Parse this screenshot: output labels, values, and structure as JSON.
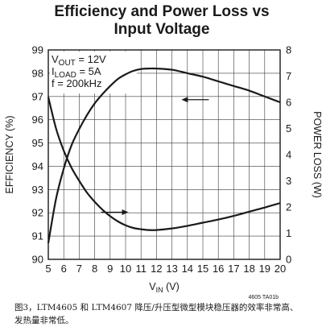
{
  "chart_data": {
    "type": "line",
    "title": "Efficiency and Power Loss vs Input Voltage",
    "title_lines": [
      "Efficiency and Power Loss vs",
      "Input Voltage"
    ],
    "xlabel": "V",
    "xlabel_sub": "IN",
    "xlabel_unit": " (V)",
    "ylabel": "EFFICIENCY (%)",
    "y2label": "POWER LOSS (W)",
    "xlim": [
      5,
      20
    ],
    "ylim": [
      90,
      99
    ],
    "y2lim": [
      0,
      8
    ],
    "x_ticks": [
      5,
      6,
      7,
      8,
      9,
      10,
      11,
      12,
      13,
      14,
      15,
      16,
      17,
      18,
      19,
      20
    ],
    "y_ticks": [
      90,
      91,
      92,
      93,
      94,
      95,
      96,
      97,
      98,
      99
    ],
    "y2_ticks": [
      0,
      1,
      2,
      3,
      4,
      5,
      6,
      7,
      8
    ],
    "grid": true,
    "conditions": [
      {
        "main": "V",
        "sub": "OUT",
        "rest": " = 12V"
      },
      {
        "main": "I",
        "sub": "LOAD",
        "rest": " = 5A"
      },
      {
        "main": "f = 200kHz",
        "sub": "",
        "rest": ""
      }
    ],
    "figure_id": "4605 TA01b",
    "series": [
      {
        "axis": "left",
        "x": [
          5,
          5.5,
          6,
          6.5,
          7,
          7.5,
          8,
          8.5,
          9,
          9.5,
          10,
          10.5,
          11,
          11.5,
          12,
          13,
          14,
          15,
          16,
          17,
          18,
          19,
          20
        ],
        "values": [
          90.7,
          92.6,
          93.9,
          94.9,
          95.6,
          96.2,
          96.7,
          97.1,
          97.45,
          97.75,
          97.95,
          98.1,
          98.18,
          98.2,
          98.2,
          98.15,
          98.0,
          97.85,
          97.65,
          97.45,
          97.25,
          97.0,
          96.75
        ]
      },
      {
        "axis": "right",
        "x": [
          5,
          5.5,
          6,
          6.5,
          7,
          7.5,
          8,
          8.5,
          9,
          9.5,
          10,
          10.5,
          11,
          11.5,
          12,
          13,
          14,
          15,
          16,
          17,
          18,
          19,
          20
        ],
        "values": [
          6.2,
          5.0,
          4.15,
          3.5,
          3.0,
          2.55,
          2.2,
          1.9,
          1.65,
          1.45,
          1.3,
          1.2,
          1.15,
          1.12,
          1.12,
          1.18,
          1.28,
          1.4,
          1.52,
          1.66,
          1.82,
          1.98,
          2.15
        ]
      }
    ],
    "annotations": [
      {
        "text": "arrow-left",
        "x": 14.5,
        "y2": 6.1
      },
      {
        "text": "arrow-right",
        "x": 9.3,
        "y2": 1.8
      }
    ]
  },
  "caption": {
    "line1": "图3，LTM4605 和 LTM4607 降压/升压型微型模块稳压器的效率非常高、",
    "line2": "发热量非常低。"
  }
}
